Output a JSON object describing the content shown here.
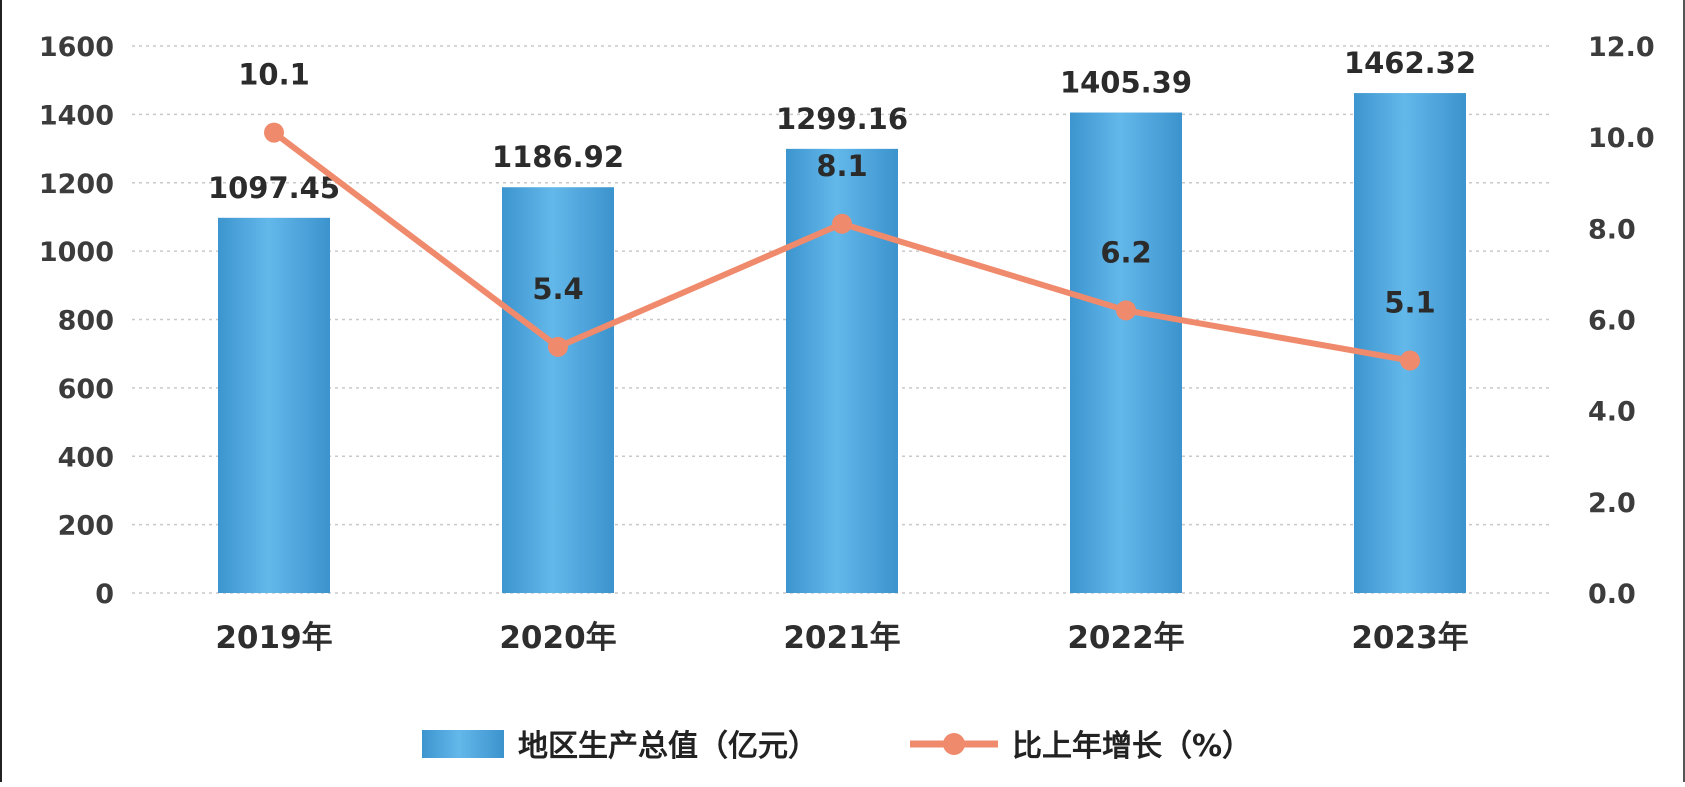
{
  "chart_data": {
    "type": "bar",
    "title": "",
    "xlabel": "",
    "categories": [
      "2019年",
      "2020年",
      "2021年",
      "2022年",
      "2023年"
    ],
    "series": [
      {
        "name": "地区生产总值（亿元）",
        "type": "bar",
        "axis": "left",
        "color": "#4fa8e0",
        "values": [
          1097.45,
          1186.92,
          1299.16,
          1405.39,
          1462.32
        ],
        "labels": [
          "1097.45",
          "1186.92",
          "1299.16",
          "1405.39",
          "1462.32"
        ]
      },
      {
        "name": "比上年增长（%）",
        "type": "line",
        "axis": "right",
        "color": "#f08a6c",
        "values": [
          10.1,
          5.4,
          8.1,
          6.2,
          5.1
        ],
        "labels": [
          "10.1",
          "5.4",
          "8.1",
          "6.2",
          "5.1"
        ]
      }
    ],
    "y_left": {
      "range": [
        0,
        1600
      ],
      "ticks": [
        "0",
        "200",
        "400",
        "600",
        "800",
        "1000",
        "1200",
        "1400",
        "1600"
      ]
    },
    "y_right": {
      "range": [
        0,
        12
      ],
      "ticks": [
        "0.0",
        "2.0",
        "4.0",
        "6.0",
        "8.0",
        "10.0",
        "12.0"
      ]
    },
    "grid": "horizontal dashed",
    "legend": "bottom"
  }
}
